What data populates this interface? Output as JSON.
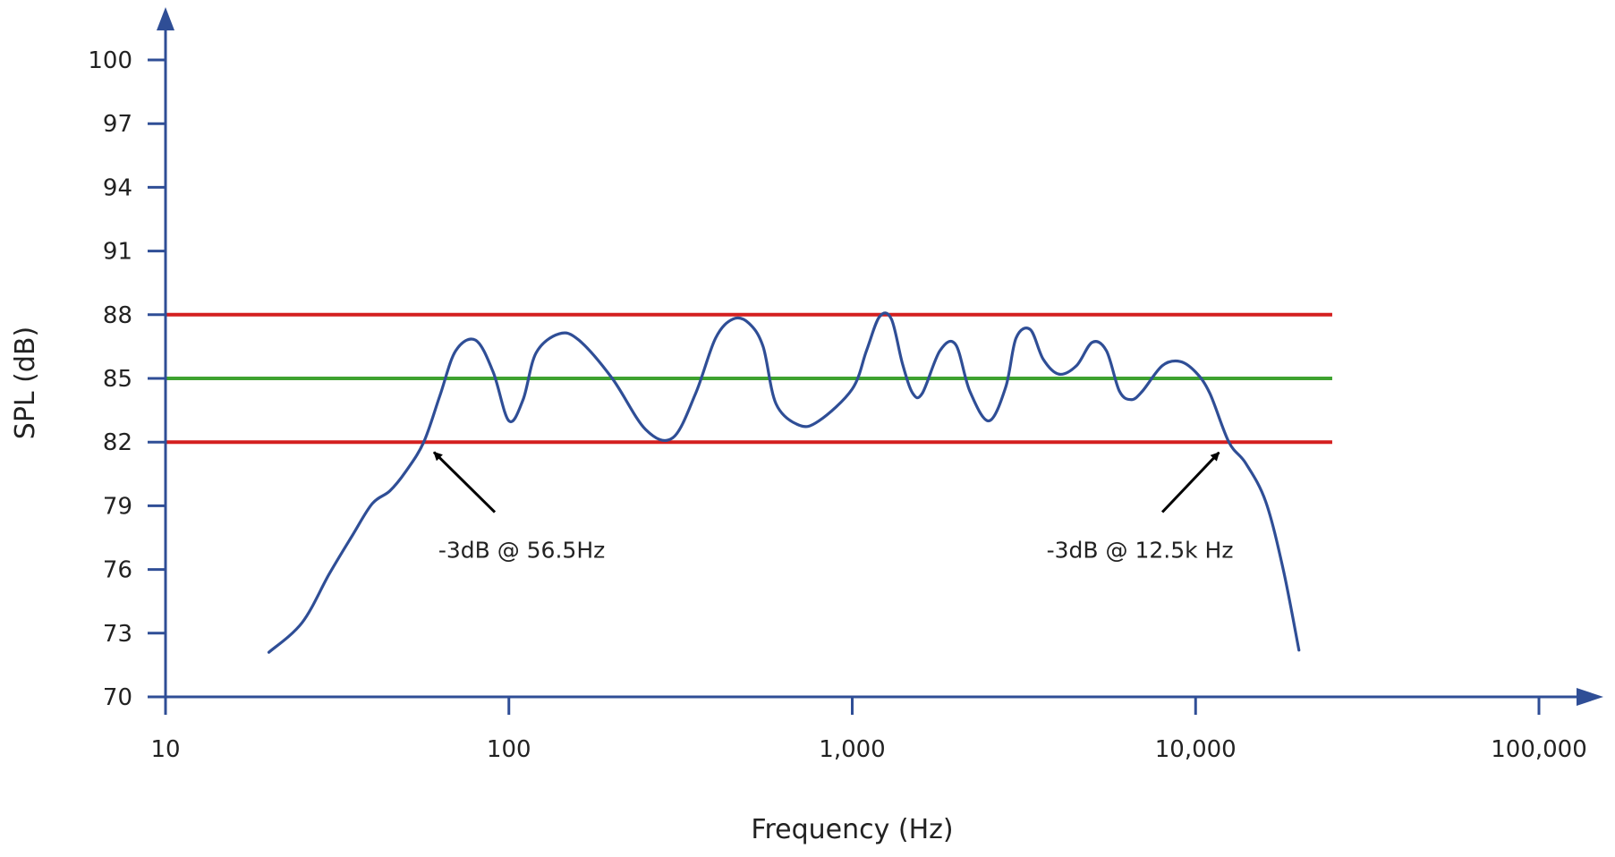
{
  "chart_data": {
    "type": "line",
    "title": "",
    "xlabel": "Frequency (Hz)",
    "ylabel": "SPL (dB)",
    "x_scale": "log",
    "xlim": [
      10,
      100000
    ],
    "ylim": [
      70,
      100
    ],
    "x_ticks": [
      10,
      100,
      1000,
      10000,
      100000
    ],
    "x_tick_labels": [
      "10",
      "100",
      "1,000",
      "10,000",
      "100,000"
    ],
    "y_ticks": [
      70,
      73,
      76,
      79,
      82,
      85,
      88,
      91,
      94,
      97,
      100
    ],
    "y_tick_labels": [
      "70",
      "73",
      "76",
      "79",
      "82",
      "85",
      "88",
      "91",
      "94",
      "97",
      "100"
    ],
    "grid": false,
    "series": [
      {
        "color": "#2f4e96",
        "x": [
          20,
          25,
          30,
          35,
          40,
          45,
          50,
          56.5,
          63,
          70,
          80,
          90,
          100,
          110,
          120,
          140,
          160,
          200,
          250,
          300,
          350,
          400,
          450,
          500,
          550,
          600,
          700,
          800,
          1000,
          1100,
          1200,
          1300,
          1400,
          1500,
          1600,
          1800,
          2000,
          2200,
          2500,
          2800,
          3000,
          3300,
          3600,
          4000,
          4500,
          5000,
          5500,
          6000,
          6500,
          7000,
          8000,
          9000,
          10000,
          11000,
          12500,
          14000,
          16000,
          18000,
          20000
        ],
        "y": [
          72.1,
          73.5,
          75.8,
          77.6,
          79.1,
          79.7,
          80.6,
          82.0,
          84.2,
          86.3,
          86.8,
          85.3,
          83.0,
          84.0,
          86.2,
          87.1,
          86.8,
          85.0,
          82.6,
          82.2,
          84.3,
          86.9,
          87.8,
          87.6,
          86.5,
          83.8,
          82.8,
          83.0,
          84.5,
          86.3,
          87.9,
          87.8,
          85.7,
          84.3,
          84.3,
          86.3,
          86.6,
          84.4,
          83.0,
          84.6,
          86.9,
          87.3,
          85.9,
          85.2,
          85.6,
          86.7,
          86.3,
          84.4,
          84.0,
          84.4,
          85.6,
          85.8,
          85.3,
          84.3,
          82.0,
          81.0,
          79.2,
          76.0,
          72.2
        ]
      }
    ],
    "reference_lines": [
      {
        "y": 88,
        "color": "#d41f1f"
      },
      {
        "y": 85,
        "color": "#3ea230"
      },
      {
        "y": 82,
        "color": "#d41f1f"
      }
    ],
    "reference_line_xrange": [
      10,
      25000
    ],
    "annotations": [
      {
        "text": "-3dB @ 56.5Hz",
        "target": [
          56.5,
          82.0
        ],
        "arrow_from": [
          91,
          78.7
        ]
      },
      {
        "text": "-3dB @ 12.5k Hz",
        "target": [
          12500,
          82.0
        ],
        "arrow_from": [
          8000,
          78.7
        ]
      }
    ],
    "colors": {
      "axis": "#2f4e96",
      "text": "#222222",
      "arrow": "#000000"
    }
  }
}
